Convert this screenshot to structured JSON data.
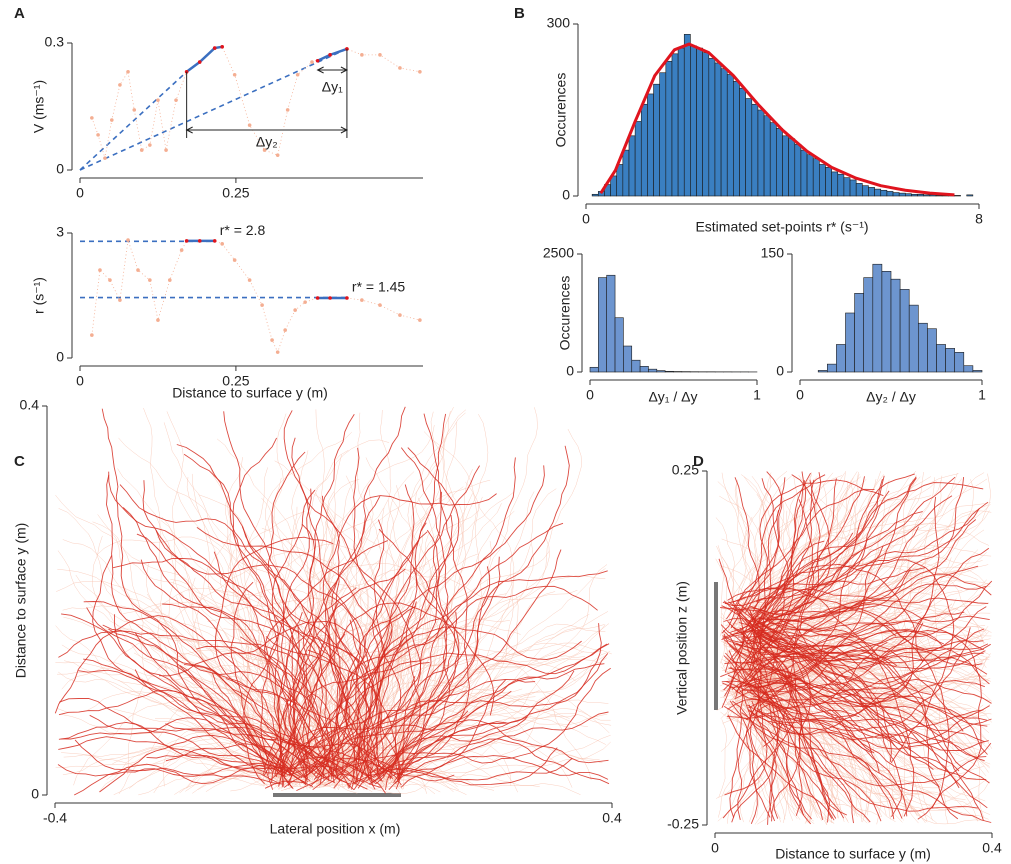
{
  "chart_data": [
    {
      "type": "line",
      "panel_label": "A",
      "ylabel": "V (ms⁻¹)",
      "xlim": [
        0,
        0.55
      ],
      "xticks": [
        0,
        0.25
      ],
      "ylim": [
        0,
        0.3
      ],
      "yticks": [
        0,
        0.3
      ],
      "color": "#f4ae92",
      "x": [
        0.019,
        0.029,
        0.04,
        0.051,
        0.064,
        0.077,
        0.087,
        0.099,
        0.112,
        0.125,
        0.138,
        0.154,
        0.171,
        0.192,
        0.216,
        0.228,
        0.248,
        0.272,
        0.296,
        0.317,
        0.333,
        0.349,
        0.372,
        0.401,
        0.428,
        0.452,
        0.481,
        0.513,
        0.545
      ],
      "values": [
        0.123,
        0.083,
        0.028,
        0.118,
        0.201,
        0.232,
        0.142,
        0.047,
        0.059,
        0.165,
        0.047,
        0.165,
        0.232,
        0.255,
        0.288,
        0.291,
        0.225,
        0.106,
        0.047,
        0.035,
        0.142,
        0.225,
        0.255,
        0.272,
        0.286,
        0.272,
        0.272,
        0.241,
        0.232
      ],
      "highlight_color": "#3b6fc0",
      "highlight_point_color": "#e0141e",
      "highlights": [
        {
          "x": [
            0.171,
            0.192,
            0.216,
            0.228
          ],
          "values": [
            0.232,
            0.255,
            0.288,
            0.291
          ]
        },
        {
          "x": [
            0.381,
            0.401,
            0.428
          ],
          "values": [
            0.258,
            0.272,
            0.286
          ]
        }
      ],
      "set_point_lines": [
        {
          "x": 0.171,
          "y": 0.232
        },
        {
          "x": 0.428,
          "y": 0.286
        }
      ],
      "brackets": [
        {
          "label": "Δy₁",
          "from": 0.381,
          "to": 0.428
        },
        {
          "label": "Δy₂",
          "from": 0.171,
          "to": 0.428
        }
      ]
    },
    {
      "type": "line",
      "ylabel": "r (s⁻¹)",
      "xlabel": "Distance to surface y (m)",
      "xlim": [
        0,
        0.55
      ],
      "xticks": [
        0,
        0.25
      ],
      "ylim": [
        0,
        3
      ],
      "yticks": [
        0,
        3
      ],
      "color": "#f4ae92",
      "x": [
        0.019,
        0.032,
        0.048,
        0.064,
        0.077,
        0.093,
        0.112,
        0.125,
        0.144,
        0.163,
        0.171,
        0.192,
        0.216,
        0.228,
        0.248,
        0.272,
        0.292,
        0.308,
        0.317,
        0.329,
        0.345,
        0.361,
        0.381,
        0.428,
        0.452,
        0.481,
        0.513,
        0.545
      ],
      "values": [
        0.55,
        2.11,
        1.87,
        1.39,
        2.83,
        2.11,
        1.87,
        0.91,
        1.87,
        2.59,
        2.81,
        2.81,
        2.81,
        2.74,
        2.35,
        1.87,
        1.27,
        0.43,
        0.14,
        0.67,
        1.15,
        1.34,
        1.44,
        1.44,
        1.39,
        1.27,
        1.03,
        0.91
      ],
      "highlight_color": "#3b6fc0",
      "highlight_point_color": "#e0141e",
      "highlights": [
        {
          "x": [
            0.171,
            0.192,
            0.216
          ],
          "values": [
            2.81,
            2.81,
            2.81
          ]
        },
        {
          "x": [
            0.381,
            0.401,
            0.428
          ],
          "values": [
            1.44,
            1.44,
            1.44
          ]
        }
      ],
      "reference_lines": [
        {
          "value": 2.8,
          "label": "r* = 2.8"
        },
        {
          "value": 1.45,
          "label": "r* = 1.45"
        }
      ]
    },
    {
      "type": "histogram",
      "panel_label": "B",
      "ylabel": "Occurences",
      "xlabel": "Estimated set-points r* (s⁻¹)",
      "xlim": [
        0,
        8
      ],
      "xticks": [
        0,
        8
      ],
      "ylim": [
        0,
        300
      ],
      "yticks": [
        0,
        300
      ],
      "color": "#3a7fc1",
      "bins": [
        0,
        0.125,
        0.25,
        0.375,
        0.5,
        0.625,
        0.75,
        0.875,
        1,
        1.125,
        1.25,
        1.375,
        1.5,
        1.625,
        1.75,
        1.875,
        2,
        2.125,
        2.25,
        2.375,
        2.5,
        2.625,
        2.75,
        2.875,
        3,
        3.125,
        3.25,
        3.375,
        3.5,
        3.625,
        3.75,
        3.875,
        4,
        4.125,
        4.25,
        4.375,
        4.5,
        4.625,
        4.75,
        4.875,
        5,
        5.125,
        5.25,
        5.375,
        5.5,
        5.625,
        5.75,
        5.875,
        6,
        6.125,
        6.25,
        6.375,
        6.5,
        6.625,
        6.75,
        6.875,
        7,
        7.125,
        7.25,
        7.375,
        7.5,
        7.625,
        7.75,
        7.875,
        8
      ],
      "values": [
        0,
        3,
        8,
        20,
        35,
        55,
        80,
        105,
        130,
        160,
        178,
        195,
        215,
        235,
        248,
        258,
        282,
        262,
        258,
        250,
        240,
        232,
        222,
        212,
        200,
        188,
        170,
        160,
        150,
        140,
        128,
        118,
        105,
        100,
        90,
        80,
        72,
        65,
        55,
        50,
        42,
        38,
        32,
        28,
        22,
        18,
        15,
        12,
        10,
        8,
        6,
        5,
        4,
        3,
        3,
        2,
        2,
        1,
        1,
        1,
        1,
        0,
        2,
        0
      ],
      "fit": {
        "color": "#e0141e",
        "x": [
          0.3,
          0.6,
          1.0,
          1.4,
          1.8,
          2.1,
          2.5,
          3.0,
          3.5,
          4.0,
          4.5,
          5.0,
          5.5,
          6.0,
          6.5,
          7.0,
          7.5
        ],
        "values": [
          5,
          45,
          130,
          210,
          255,
          265,
          250,
          210,
          160,
          115,
          78,
          50,
          31,
          18,
          10,
          5,
          2
        ]
      }
    },
    {
      "type": "histogram",
      "ylabel": "Occurences",
      "xlabel": "Δy₁ / Δy",
      "xlim": [
        0,
        1
      ],
      "xticks": [
        0,
        1
      ],
      "ylim": [
        0,
        2500
      ],
      "yticks": [
        0,
        2500
      ],
      "color": "#6d95cf",
      "bins": [
        0,
        0.05,
        0.1,
        0.15,
        0.2,
        0.25,
        0.3,
        0.35,
        0.4,
        0.45,
        0.5,
        0.55,
        0.6,
        0.65,
        0.7,
        0.75,
        0.8,
        0.85,
        0.9,
        0.95,
        1
      ],
      "values": [
        100,
        2000,
        2050,
        1150,
        550,
        250,
        120,
        60,
        30,
        15,
        10,
        8,
        6,
        5,
        5,
        4,
        4,
        3,
        3,
        2
      ]
    },
    {
      "type": "histogram",
      "xlabel": "Δy₂ / Δy",
      "xlim": [
        0,
        1
      ],
      "xticks": [
        0,
        1
      ],
      "ylim": [
        0,
        150
      ],
      "yticks": [
        0,
        150
      ],
      "color": "#6d95cf",
      "bins": [
        0,
        0.05,
        0.1,
        0.15,
        0.2,
        0.25,
        0.3,
        0.35,
        0.4,
        0.45,
        0.5,
        0.55,
        0.6,
        0.65,
        0.7,
        0.75,
        0.8,
        0.85,
        0.9,
        0.95,
        1
      ],
      "values": [
        0,
        0,
        2,
        10,
        35,
        75,
        100,
        120,
        137,
        128,
        118,
        105,
        85,
        62,
        55,
        35,
        30,
        25,
        8,
        2
      ]
    },
    {
      "type": "trajectory",
      "panel_label": "C",
      "xlabel": "Lateral position x (m)",
      "ylabel": "Distance to surface y (m)",
      "xlim": [
        -0.4,
        0.4
      ],
      "xticks": [
        -0.4,
        0.4
      ],
      "ylim": [
        0,
        0.4
      ],
      "yticks": [
        0,
        0.4
      ],
      "colors": [
        "#f7bba5",
        "#d62a1e"
      ]
    },
    {
      "type": "trajectory",
      "panel_label": "D",
      "xlabel": "Distance to surface y (m)",
      "ylabel": "Vertical position z (m)",
      "xlim": [
        0,
        0.4
      ],
      "xticks": [
        0,
        0.4
      ],
      "ylim": [
        -0.25,
        0.25
      ],
      "yticks": [
        -0.25,
        0.25
      ],
      "colors": [
        "#f7bba5",
        "#d62a1e"
      ]
    }
  ]
}
